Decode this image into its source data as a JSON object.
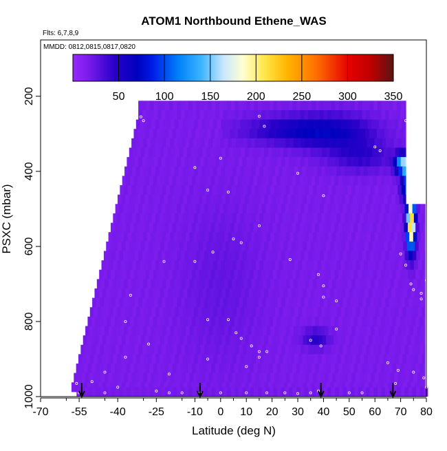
{
  "chart_data": {
    "type": "heatmap",
    "title": "ATOM1 Northbound Ethene_WAS",
    "subtitle_flights": "Flts: 6,7,8,9",
    "subtitle_dates": "MMDD: 0812,0815,0817,0820",
    "xlabel": "Latitude (deg N)",
    "ylabel": "PSXC (mbar)",
    "xlim": [
      -70,
      80
    ],
    "ylim": [
      1000,
      50
    ],
    "x_tick_labels": [
      "-70",
      "-55",
      "-40",
      "-25",
      "-10",
      "0",
      "10",
      "20",
      "30",
      "40",
      "50",
      "60",
      "70",
      "80"
    ],
    "x_tick_values": [
      -70,
      -55,
      -40,
      -25,
      -10,
      0,
      10,
      20,
      30,
      40,
      50,
      60,
      70,
      80
    ],
    "x_tick_labels_minor": [
      "-60",
      "-45",
      "-30",
      "-15",
      "-5",
      "5",
      "15",
      "25",
      "35",
      "45",
      "55",
      "65",
      "75"
    ],
    "x_tick_values_minor": [
      -60,
      -45,
      -30,
      -15,
      -5,
      5,
      15,
      25,
      35,
      45,
      55,
      65,
      75
    ],
    "y_tick_labels": [
      "200",
      "400",
      "600",
      "800",
      "1000"
    ],
    "y_tick_values": [
      200,
      400,
      600,
      800,
      1000
    ],
    "colorbar": {
      "range": [
        0,
        350
      ],
      "tick_labels": [
        "50",
        "100",
        "150",
        "200",
        "250",
        "300",
        "350"
      ],
      "tick_values": [
        50,
        100,
        150,
        200,
        250,
        300,
        350
      ]
    },
    "flight_arrows_lat": [
      -54,
      -8,
      39,
      67
    ],
    "grid": false
  }
}
